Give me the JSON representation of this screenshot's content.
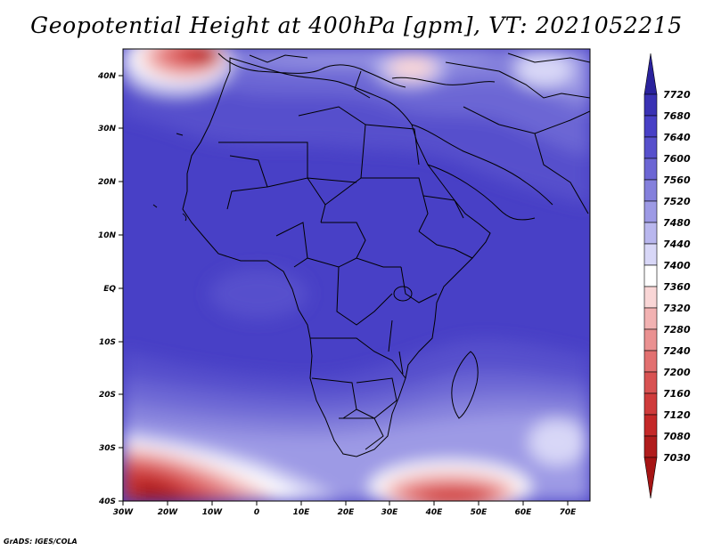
{
  "title": "Geopotential Height at 400hPa [gpm], VT: 2021052215",
  "credit": "GrADS: IGES/COLA",
  "lat_labels": [
    "40N",
    "30N",
    "20N",
    "10N",
    "EQ",
    "10S",
    "20S",
    "30S",
    "40S"
  ],
  "lon_labels": [
    "30W",
    "20W",
    "10W",
    "0",
    "10E",
    "20E",
    "30E",
    "40E",
    "50E",
    "60E",
    "70E"
  ],
  "colorbar": {
    "labels": [
      "7720",
      "7680",
      "7640",
      "7600",
      "7560",
      "7520",
      "7480",
      "7440",
      "7400",
      "7360",
      "7320",
      "7280",
      "7240",
      "7200",
      "7160",
      "7120",
      "7080",
      "7030"
    ],
    "colors": [
      "#2a229c",
      "#3a32b4",
      "#4840c6",
      "#5750cc",
      "#6c66d4",
      "#8480dc",
      "#9d9ae5",
      "#b9b7ee",
      "#d8d7f7",
      "#ffffff",
      "#f9d6d6",
      "#f2b2b2",
      "#ea9191",
      "#e27070",
      "#d85252",
      "#cf3b3b",
      "#c42828",
      "#b01c1c",
      "#a51414"
    ]
  },
  "map": {
    "projection": "lat-lon",
    "lon_range": [
      -30,
      75
    ],
    "lat_range": [
      -40,
      45
    ],
    "grid": false
  }
}
